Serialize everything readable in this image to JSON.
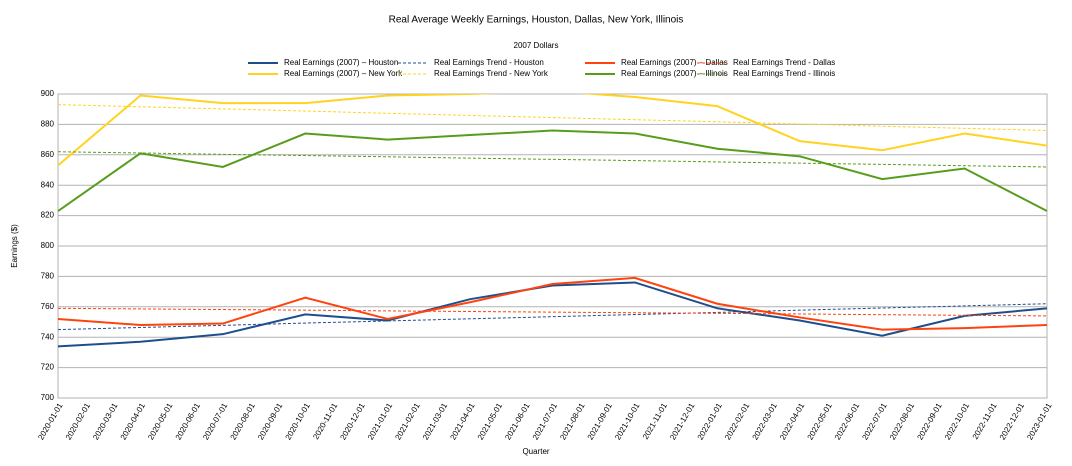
{
  "chart_data": {
    "type": "line",
    "title": "Real Average Weekly Earnings, Houston, Dallas, New York, Illinois",
    "subtitle": "2007 Dollars",
    "y_label": "Earnings ($)",
    "x_label": "Quarter",
    "categories": [
      "2020-01-01",
      "2020-02-01",
      "2020-03-01",
      "2020-04-01",
      "2020-05-01",
      "2020-06-01",
      "2020-07-01",
      "2020-08-01",
      "2020-09-01",
      "2020-10-01",
      "2020-11-01",
      "2020-12-01",
      "2021-01-01",
      "2021-02-01",
      "2021-03-01",
      "2021-04-01",
      "2021-05-01",
      "2021-06-01",
      "2021-07-01",
      "2021-08-01",
      "2021-09-01",
      "2021-10-01",
      "2021-11-01",
      "2021-12-01",
      "2022-01-01",
      "2022-02-01",
      "2022-03-01",
      "2022-04-01",
      "2022-05-01",
      "2022-06-01",
      "2022-07-01",
      "2022-08-01",
      "2022-09-01",
      "2022-10-01",
      "2022-11-01",
      "2022-12-01",
      "2023-01-01"
    ],
    "x": [
      "2020-01-01",
      "2020-04-01",
      "2020-07-01",
      "2020-10-01",
      "2021-01-01",
      "2021-04-01",
      "2021-07-01",
      "2021-10-01",
      "2022-01-01",
      "2022-04-01",
      "2022-07-01",
      "2022-10-01",
      "2023-01-01"
    ],
    "series": [
      {
        "name": "Real Earnings (2007) – Houston",
        "color": "#1f4e8c",
        "dashed": false,
        "values": [
          734,
          737,
          742,
          755,
          751,
          765,
          774,
          776,
          759,
          751,
          741,
          754,
          759
        ]
      },
      {
        "name": "Real Earnings Trend - Houston",
        "color": "#1f4e8c",
        "dashed": true,
        "values": [
          745,
          746.4,
          747.8,
          749.3,
          750.7,
          752.1,
          753.5,
          754.9,
          756.3,
          757.8,
          759.2,
          760.6,
          762
        ]
      },
      {
        "name": "Real Earnings (2007) – Dallas",
        "color": "#ff420e",
        "dashed": false,
        "values": [
          752,
          748,
          749,
          766,
          752,
          763,
          775,
          779,
          762,
          753,
          745,
          746,
          748
        ]
      },
      {
        "name": "Real Earnings Trend - Dallas",
        "color": "#ff420e",
        "dashed": true,
        "values": [
          759,
          758.6,
          758.2,
          757.8,
          757.3,
          756.9,
          756.5,
          756.1,
          755.7,
          755.3,
          754.8,
          754.4,
          754
        ]
      },
      {
        "name": "Real Earnings (2007) – New York",
        "color": "#ffd320",
        "dashed": false,
        "values": [
          853,
          899,
          894,
          894,
          899,
          900,
          902,
          898,
          892,
          869,
          863,
          874,
          866
        ]
      },
      {
        "name": "Real Earnings Trend - New York",
        "color": "#ffd320",
        "dashed": true,
        "values": [
          893,
          891.6,
          890.2,
          888.8,
          887.3,
          885.9,
          884.5,
          883.1,
          881.7,
          880.3,
          878.8,
          877.4,
          876
        ]
      },
      {
        "name": "Real Earnings (2007) – Illinois",
        "color": "#579d1c",
        "dashed": false,
        "values": [
          823,
          861,
          852,
          874,
          870,
          873,
          876,
          874,
          864,
          859,
          844,
          851,
          823
        ]
      },
      {
        "name": "Real Earnings Trend - Illinois",
        "color": "#579d1c",
        "dashed": true,
        "values": [
          862,
          861.2,
          860.3,
          859.5,
          858.7,
          857.8,
          857,
          856.2,
          855.3,
          854.5,
          853.7,
          852.8,
          852
        ]
      }
    ],
    "ylim": [
      700,
      900
    ],
    "yticks": [
      700,
      720,
      740,
      760,
      780,
      800,
      820,
      840,
      860,
      880,
      900
    ],
    "grid": true
  }
}
